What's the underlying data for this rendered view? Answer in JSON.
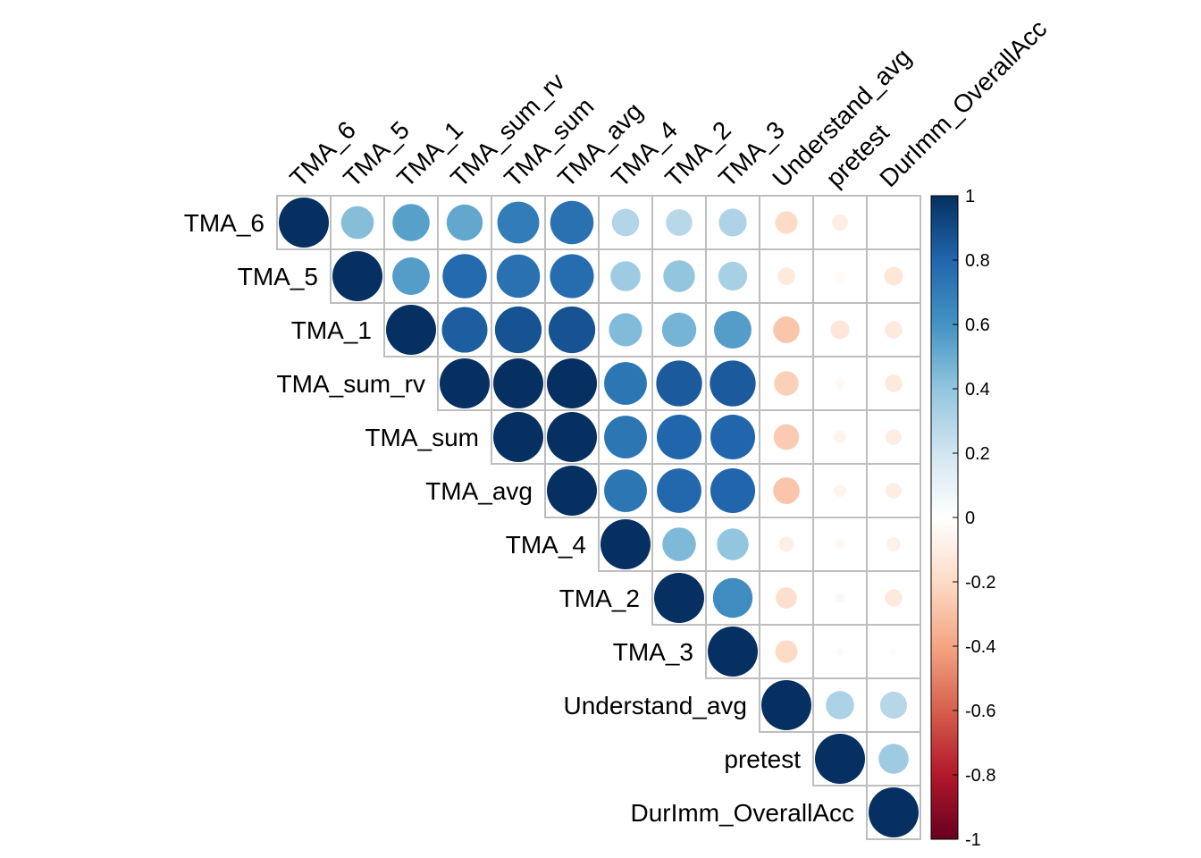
{
  "chart_data": {
    "type": "heatmap",
    "layout": "upper-triangle",
    "glyph": "circle",
    "variables": [
      "TMA_6",
      "TMA_5",
      "TMA_1",
      "TMA_sum_rv",
      "TMA_sum",
      "TMA_avg",
      "TMA_4",
      "TMA_2",
      "TMA_3",
      "Understand_avg",
      "pretest",
      "DurImm_OverallAcc"
    ],
    "matrix": [
      [
        1.0,
        0.43,
        0.55,
        0.52,
        0.7,
        0.75,
        0.3,
        0.28,
        0.31,
        -0.2,
        -0.1,
        0.0
      ],
      [
        0.43,
        1.0,
        0.56,
        0.78,
        0.75,
        0.77,
        0.36,
        0.4,
        0.33,
        -0.12,
        -0.04,
        -0.14
      ],
      [
        0.55,
        0.56,
        1.0,
        0.83,
        0.87,
        0.87,
        0.44,
        0.47,
        0.56,
        -0.28,
        -0.14,
        -0.12
      ],
      [
        0.52,
        0.78,
        0.83,
        1.0,
        1.0,
        1.0,
        0.73,
        0.84,
        0.84,
        -0.24,
        -0.04,
        -0.12
      ],
      [
        0.7,
        0.75,
        0.87,
        1.0,
        1.0,
        1.0,
        0.73,
        0.8,
        0.8,
        -0.26,
        -0.06,
        -0.1
      ],
      [
        0.75,
        0.77,
        0.87,
        1.0,
        1.0,
        1.0,
        0.73,
        0.79,
        0.8,
        -0.28,
        -0.06,
        -0.1
      ],
      [
        0.3,
        0.36,
        0.44,
        0.73,
        0.73,
        0.73,
        1.0,
        0.45,
        0.4,
        -0.09,
        -0.04,
        -0.08
      ],
      [
        0.28,
        0.4,
        0.47,
        0.84,
        0.8,
        0.79,
        0.45,
        1.0,
        0.63,
        -0.18,
        0.04,
        -0.12
      ],
      [
        0.31,
        0.33,
        0.56,
        0.84,
        0.8,
        0.8,
        0.4,
        0.63,
        1.0,
        -0.2,
        0.03,
        0.02
      ],
      [
        -0.2,
        -0.12,
        -0.28,
        -0.24,
        -0.26,
        -0.28,
        -0.09,
        -0.18,
        -0.2,
        1.0,
        0.32,
        0.29
      ],
      [
        -0.1,
        -0.04,
        -0.14,
        -0.04,
        -0.06,
        -0.06,
        -0.04,
        0.04,
        0.03,
        0.32,
        1.0,
        0.36
      ],
      [
        0.0,
        -0.14,
        -0.12,
        -0.12,
        -0.1,
        -0.1,
        -0.08,
        -0.12,
        0.02,
        0.29,
        0.36,
        1.0
      ]
    ],
    "colorbar": {
      "range": [
        -1,
        1
      ],
      "ticks": [
        "1",
        "0.8",
        "0.6",
        "0.4",
        "0.2",
        "0",
        "-0.2",
        "-0.4",
        "-0.6",
        "-0.8",
        "-1"
      ],
      "colors": [
        "#67001F",
        "#B2182B",
        "#D6604D",
        "#F4A582",
        "#FDDBC7",
        "#FFFFFF",
        "#D1E5F0",
        "#92C5DE",
        "#4393C3",
        "#2166AC",
        "#053061"
      ]
    },
    "grid_color": "#BEBEBE"
  }
}
